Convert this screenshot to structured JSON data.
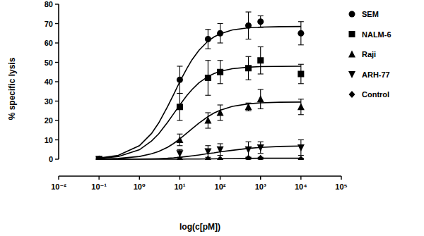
{
  "chart_data": {
    "type": "scatter",
    "x_label": "log(c[pM])",
    "y_label": "% specific lysis",
    "log": "x",
    "xlim": [
      0.01,
      100000
    ],
    "xticks": [
      {
        "value": 0.01,
        "label": "10⁻²"
      },
      {
        "value": 0.1,
        "label": "10⁻¹"
      },
      {
        "value": 1,
        "label": "10⁰"
      },
      {
        "value": 10,
        "label": "10¹"
      },
      {
        "value": 100,
        "label": "10²"
      },
      {
        "value": 1000,
        "label": "10³"
      },
      {
        "value": 10000,
        "label": "10⁴"
      },
      {
        "value": 100000,
        "label": "10⁵"
      }
    ],
    "ylim": [
      0,
      80
    ],
    "yticks": [
      0,
      10,
      20,
      30,
      40,
      50,
      60,
      70,
      80
    ],
    "legend": "right",
    "x": [
      0.1,
      10,
      50,
      100,
      500,
      1000,
      10000
    ],
    "fit_x": [
      0.1,
      0.3,
      1,
      2,
      3,
      5,
      7,
      10,
      15,
      20,
      30,
      50,
      70,
      100,
      200,
      500,
      1000,
      3000,
      10000
    ],
    "series": [
      {
        "name": "SEM",
        "color": "#000000",
        "marker": "circle",
        "values": [
          0,
          41,
          62,
          65,
          69,
          71,
          65
        ],
        "errors": [
          0,
          7,
          5,
          5,
          7,
          3,
          6
        ],
        "fit": [
          0.6,
          2.0,
          7.0,
          13.3,
          18.7,
          27.2,
          33.3,
          40.0,
          46.9,
          51.3,
          56.3,
          61.0,
          63.1,
          64.7,
          66.7,
          67.8,
          68.2,
          68.4,
          68.5
        ]
      },
      {
        "name": "NALM-6",
        "color": "#000000",
        "marker": "square",
        "values": [
          0,
          27,
          42,
          45,
          47,
          51,
          44
        ],
        "errors": [
          0,
          7,
          9,
          6,
          6,
          7,
          5
        ],
        "fit": [
          0.4,
          1.4,
          4.9,
          9.4,
          13.1,
          19.1,
          23.4,
          28.0,
          32.9,
          35.9,
          39.5,
          42.7,
          44.2,
          45.4,
          46.7,
          47.5,
          47.8,
          47.9,
          48.0
        ]
      },
      {
        "name": "Raji",
        "color": "#000000",
        "marker": "triangle",
        "values": [
          0,
          10,
          20,
          24,
          27,
          31,
          27
        ],
        "errors": [
          0,
          3,
          4,
          4,
          2,
          5,
          4
        ],
        "fit": [
          0.1,
          0.4,
          1.4,
          2.8,
          4.0,
          6.2,
          8.1,
          10.5,
          13.5,
          15.7,
          18.7,
          22.0,
          23.8,
          25.3,
          27.3,
          28.6,
          29.1,
          29.4,
          29.5
        ]
      },
      {
        "name": "ARH-77",
        "color": "#000000",
        "marker": "triangle-down",
        "values": [
          0,
          3,
          4,
          5,
          5,
          6,
          6
        ],
        "errors": [
          0,
          2,
          3,
          3,
          4,
          3,
          4
        ],
        "fit": [
          0,
          0,
          0.1,
          0.2,
          0.3,
          0.5,
          0.7,
          1.0,
          1.4,
          1.7,
          2.2,
          2.9,
          3.3,
          3.8,
          4.6,
          5.6,
          6.1,
          6.6,
          6.8
        ]
      },
      {
        "name": "Control",
        "color": "#000000",
        "marker": "diamond",
        "values": [
          0,
          0,
          0,
          0,
          0.5,
          0.5,
          0
        ],
        "errors": [
          0,
          0,
          0,
          0,
          0.5,
          0.5,
          0.5
        ],
        "fit": [
          0,
          0,
          0,
          0,
          0,
          0,
          0,
          0,
          0.1,
          0.1,
          0.1,
          0.2,
          0.2,
          0.3,
          0.3,
          0.4,
          0.5,
          0.5,
          0.5
        ]
      }
    ]
  }
}
